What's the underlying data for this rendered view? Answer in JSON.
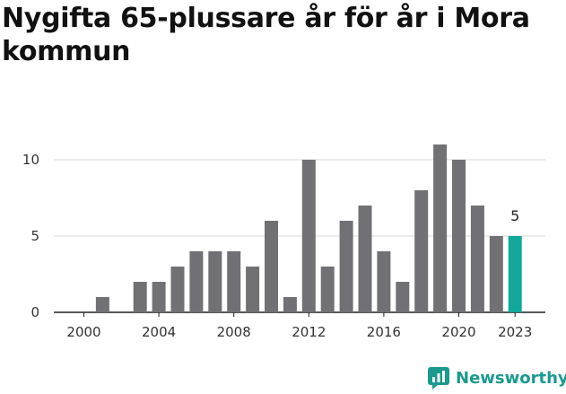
{
  "title": "Nygifta 65-plussare år för år i Mora kommun",
  "chart_data": {
    "type": "bar",
    "title": "Nygifta 65-plussare år för år i Mora kommun",
    "categories": [
      2000,
      2001,
      2002,
      2003,
      2004,
      2005,
      2006,
      2007,
      2008,
      2009,
      2010,
      2011,
      2012,
      2013,
      2014,
      2015,
      2016,
      2017,
      2018,
      2019,
      2020,
      2021,
      2022,
      2023
    ],
    "values": [
      0,
      1,
      0,
      2,
      2,
      3,
      4,
      4,
      4,
      3,
      6,
      1,
      10,
      3,
      6,
      7,
      4,
      2,
      8,
      11,
      10,
      7,
      5,
      5
    ],
    "x_ticks": [
      "2000",
      "2004",
      "2008",
      "2012",
      "2016",
      "2020",
      "2023"
    ],
    "y_ticks": [
      0,
      5,
      10
    ],
    "ylim": [
      0,
      11
    ],
    "highlight": {
      "category": 2023,
      "label": "5"
    },
    "colors": {
      "bar": "#717075",
      "highlight": "#12a89a",
      "grid": "#d9d9d9",
      "axis": "#222222"
    },
    "xlabel": "",
    "ylabel": ""
  },
  "brand": {
    "name": "Newsworthy",
    "icon": "newsworthy-logo-icon",
    "color": "#1a9a8e"
  }
}
